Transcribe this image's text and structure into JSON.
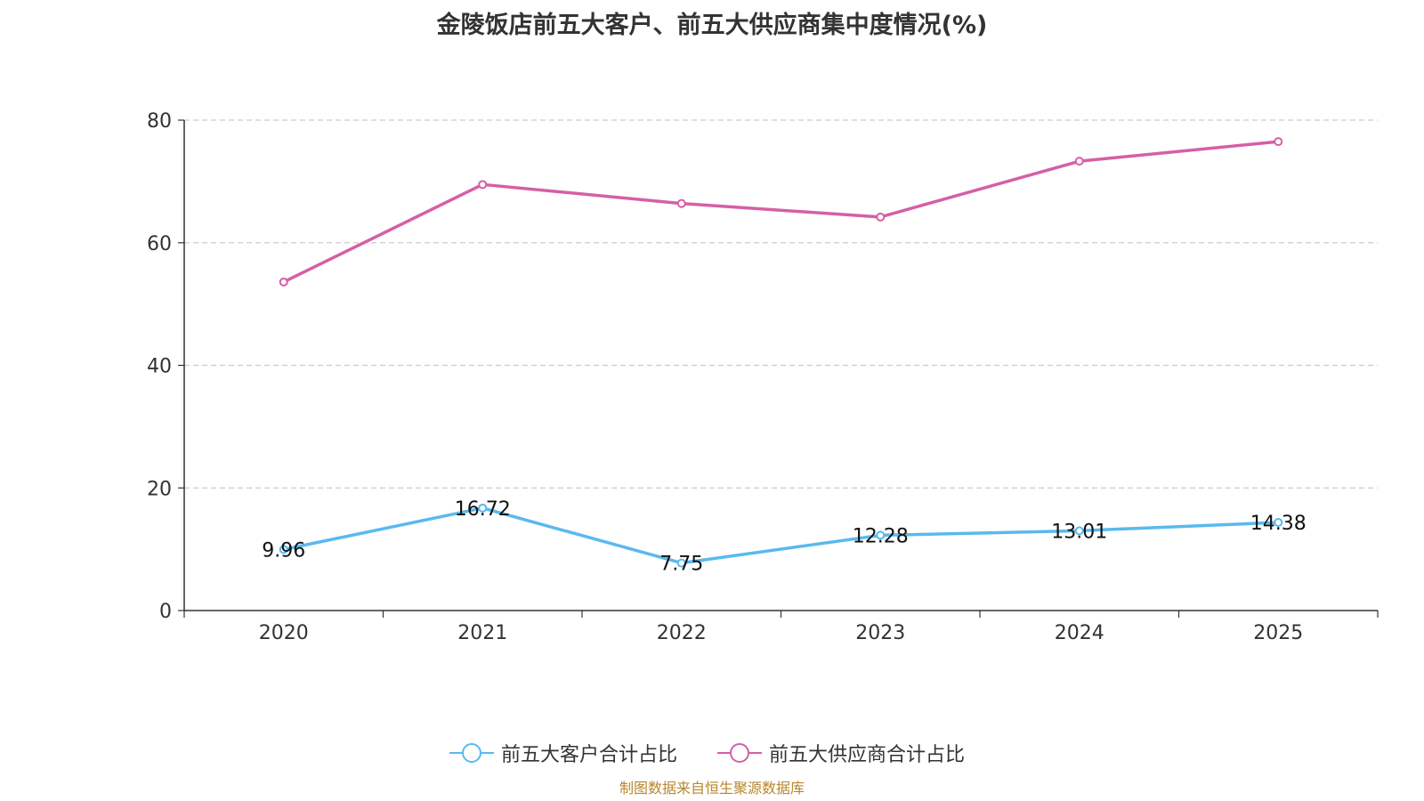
{
  "chart_data": {
    "type": "line",
    "title": "金陵饭店前五大客户、前五大供应商集中度情况(%)",
    "categories": [
      "2020",
      "2021",
      "2022",
      "2023",
      "2024",
      "2025"
    ],
    "ylim": [
      0,
      80
    ],
    "yticks": [
      0,
      20,
      40,
      60,
      80
    ],
    "grid": true,
    "legend_position": "bottom",
    "series": [
      {
        "name": "前五大客户合计占比",
        "color": "#5ab9ef",
        "values": [
          9.96,
          16.72,
          7.75,
          12.28,
          13.01,
          14.38
        ],
        "labels": [
          "9.96",
          "16.72",
          "7.75",
          "12.28",
          "13.01",
          "14.38"
        ]
      },
      {
        "name": "前五大供应商合计占比",
        "color": "#d55fa6",
        "values": [
          53.6,
          69.5,
          66.4,
          64.2,
          73.3,
          76.5
        ]
      }
    ]
  },
  "source": "制图数据来自恒生聚源数据库"
}
